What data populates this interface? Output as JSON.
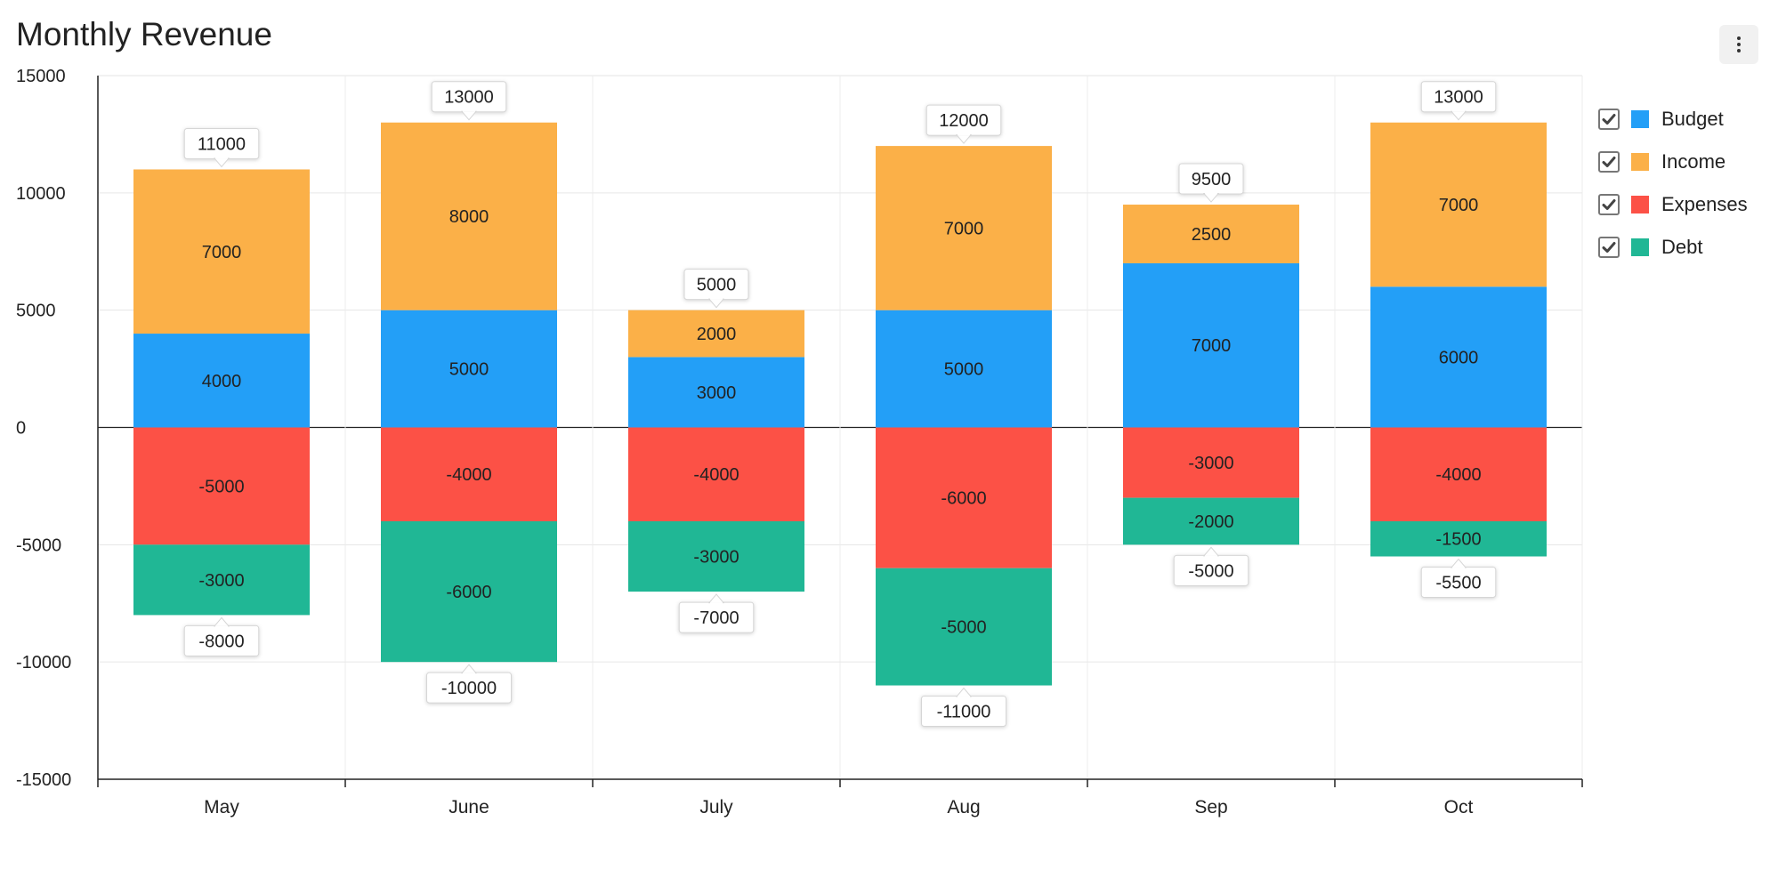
{
  "chart_data": {
    "type": "bar",
    "stacked": true,
    "title": "Monthly Revenue",
    "categories": [
      "May",
      "June",
      "July",
      "Aug",
      "Sep",
      "Oct"
    ],
    "series": [
      {
        "name": "Budget",
        "color": "#239ff7",
        "values": [
          4000,
          5000,
          3000,
          5000,
          7000,
          6000
        ]
      },
      {
        "name": "Income",
        "color": "#fbb048",
        "values": [
          7000,
          8000,
          2000,
          7000,
          2500,
          7000
        ]
      },
      {
        "name": "Expenses",
        "color": "#fc5146",
        "values": [
          -5000,
          -4000,
          -4000,
          -6000,
          -3000,
          -4000
        ]
      },
      {
        "name": "Debt",
        "color": "#20b795",
        "values": [
          -3000,
          -6000,
          -3000,
          -5000,
          -2000,
          -1500
        ]
      }
    ],
    "positive_totals": [
      11000,
      13000,
      5000,
      12000,
      9500,
      13000
    ],
    "negative_totals": [
      -8000,
      -10000,
      -7000,
      -11000,
      -5000,
      -5500
    ],
    "ylim": [
      -15000,
      15000
    ],
    "yticks": [
      15000,
      10000,
      5000,
      0,
      -5000,
      -10000,
      -15000
    ],
    "grid": true,
    "legend_position": "right",
    "xlabel": "",
    "ylabel": ""
  },
  "legend": {
    "checked": [
      true,
      true,
      true,
      true
    ]
  },
  "menu_icon": "more-vertical-icon"
}
